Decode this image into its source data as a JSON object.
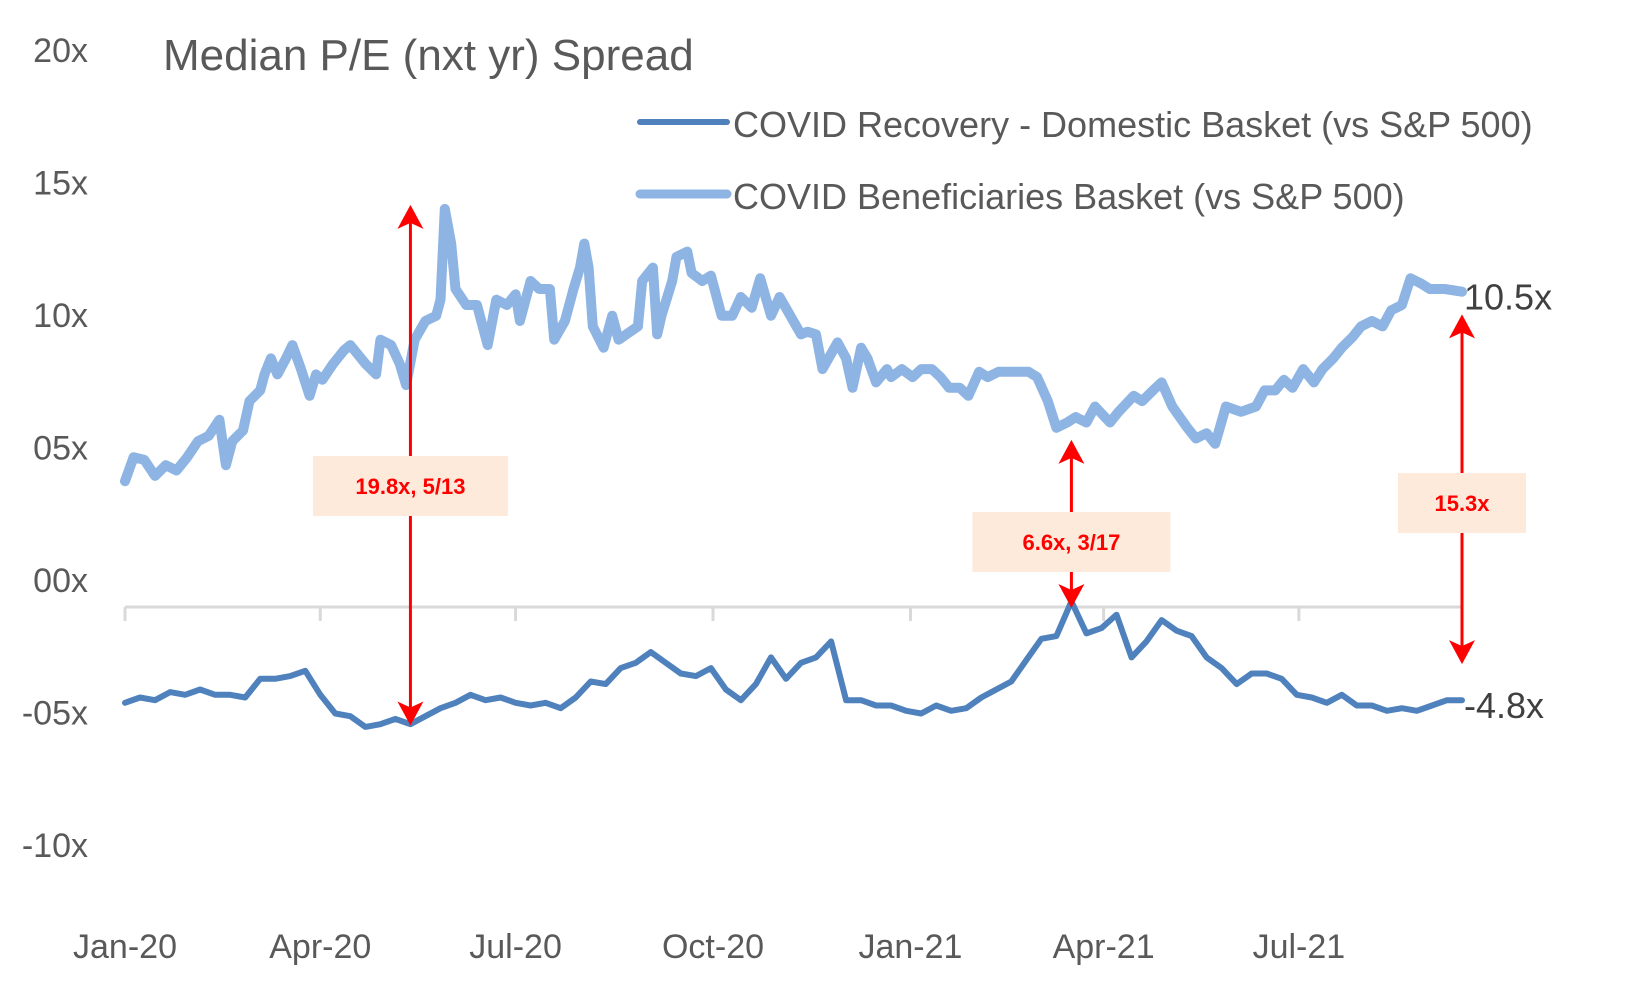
{
  "chart_data": {
    "type": "line",
    "title": "Median P/E (nxt yr) Spread",
    "xlabel": "",
    "ylabel": "",
    "ylim": [
      -10,
      20
    ],
    "yticks": [
      {
        "value": 20,
        "label": "20x"
      },
      {
        "value": 15,
        "label": "15x"
      },
      {
        "value": 10,
        "label": "10x"
      },
      {
        "value": 5,
        "label": "05x"
      },
      {
        "value": 0,
        "label": "00x"
      },
      {
        "value": -5,
        "label": "-05x"
      },
      {
        "value": -10,
        "label": "-10x"
      }
    ],
    "xlim": [
      "2020-01-01",
      "2021-09-15"
    ],
    "xticks": [
      {
        "date": "2020-01-01",
        "label": "Jan-20"
      },
      {
        "date": "2020-04-01",
        "label": "Apr-20"
      },
      {
        "date": "2020-07-01",
        "label": "Jul-20"
      },
      {
        "date": "2020-10-01",
        "label": "Oct-20"
      },
      {
        "date": "2021-01-01",
        "label": "Jan-21"
      },
      {
        "date": "2021-04-01",
        "label": "Apr-21"
      },
      {
        "date": "2021-07-01",
        "label": "Jul-21"
      }
    ],
    "grid": false,
    "legend_position": "top-right",
    "series": [
      {
        "name": "COVID Recovery - Domestic Basket (vs S&P 500)",
        "color": "#4f81bd",
        "end_label": "-4.8x",
        "points": [
          [
            "2020-01-01",
            -4.9
          ],
          [
            "2020-01-08",
            -4.7
          ],
          [
            "2020-01-15",
            -4.8
          ],
          [
            "2020-01-22",
            -4.5
          ],
          [
            "2020-01-29",
            -4.6
          ],
          [
            "2020-02-05",
            -4.4
          ],
          [
            "2020-02-12",
            -4.6
          ],
          [
            "2020-02-19",
            -4.6
          ],
          [
            "2020-02-26",
            -4.7
          ],
          [
            "2020-03-04",
            -4.0
          ],
          [
            "2020-03-11",
            -4.0
          ],
          [
            "2020-03-18",
            -3.9
          ],
          [
            "2020-03-25",
            -3.7
          ],
          [
            "2020-04-01",
            -4.6
          ],
          [
            "2020-04-08",
            -5.3
          ],
          [
            "2020-04-15",
            -5.4
          ],
          [
            "2020-04-22",
            -5.8
          ],
          [
            "2020-04-29",
            -5.7
          ],
          [
            "2020-05-06",
            -5.5
          ],
          [
            "2020-05-13",
            -5.7
          ],
          [
            "2020-05-20",
            -5.4
          ],
          [
            "2020-05-27",
            -5.1
          ],
          [
            "2020-06-03",
            -4.9
          ],
          [
            "2020-06-10",
            -4.6
          ],
          [
            "2020-06-17",
            -4.8
          ],
          [
            "2020-06-24",
            -4.7
          ],
          [
            "2020-07-01",
            -4.9
          ],
          [
            "2020-07-08",
            -5.0
          ],
          [
            "2020-07-15",
            -4.9
          ],
          [
            "2020-07-22",
            -5.1
          ],
          [
            "2020-07-29",
            -4.7
          ],
          [
            "2020-08-05",
            -4.1
          ],
          [
            "2020-08-12",
            -4.2
          ],
          [
            "2020-08-19",
            -3.6
          ],
          [
            "2020-08-26",
            -3.4
          ],
          [
            "2020-09-02",
            -3.0
          ],
          [
            "2020-09-09",
            -3.4
          ],
          [
            "2020-09-16",
            -3.8
          ],
          [
            "2020-09-23",
            -3.9
          ],
          [
            "2020-09-30",
            -3.6
          ],
          [
            "2020-10-07",
            -4.4
          ],
          [
            "2020-10-14",
            -4.8
          ],
          [
            "2020-10-21",
            -4.2
          ],
          [
            "2020-10-28",
            -3.2
          ],
          [
            "2020-11-04",
            -4.0
          ],
          [
            "2020-11-11",
            -3.4
          ],
          [
            "2020-11-18",
            -3.2
          ],
          [
            "2020-11-25",
            -2.6
          ],
          [
            "2020-12-02",
            -4.8
          ],
          [
            "2020-12-09",
            -4.8
          ],
          [
            "2020-12-16",
            -5.0
          ],
          [
            "2020-12-23",
            -5.0
          ],
          [
            "2020-12-30",
            -5.2
          ],
          [
            "2021-01-06",
            -5.3
          ],
          [
            "2021-01-13",
            -5.0
          ],
          [
            "2021-01-20",
            -5.2
          ],
          [
            "2021-01-27",
            -5.1
          ],
          [
            "2021-02-03",
            -4.7
          ],
          [
            "2021-02-10",
            -4.4
          ],
          [
            "2021-02-17",
            -4.1
          ],
          [
            "2021-02-24",
            -3.3
          ],
          [
            "2021-03-03",
            -2.5
          ],
          [
            "2021-03-10",
            -2.4
          ],
          [
            "2021-03-17",
            -1.1
          ],
          [
            "2021-03-24",
            -2.3
          ],
          [
            "2021-03-31",
            -2.1
          ],
          [
            "2021-04-07",
            -1.6
          ],
          [
            "2021-04-14",
            -3.2
          ],
          [
            "2021-04-21",
            -2.6
          ],
          [
            "2021-04-28",
            -1.8
          ],
          [
            "2021-05-05",
            -2.2
          ],
          [
            "2021-05-12",
            -2.4
          ],
          [
            "2021-05-19",
            -3.2
          ],
          [
            "2021-05-26",
            -3.6
          ],
          [
            "2021-06-02",
            -4.2
          ],
          [
            "2021-06-09",
            -3.8
          ],
          [
            "2021-06-16",
            -3.8
          ],
          [
            "2021-06-23",
            -4.0
          ],
          [
            "2021-06-30",
            -4.6
          ],
          [
            "2021-07-07",
            -4.7
          ],
          [
            "2021-07-14",
            -4.9
          ],
          [
            "2021-07-21",
            -4.6
          ],
          [
            "2021-07-28",
            -5.0
          ],
          [
            "2021-08-04",
            -5.0
          ],
          [
            "2021-08-11",
            -5.2
          ],
          [
            "2021-08-18",
            -5.1
          ],
          [
            "2021-08-25",
            -5.2
          ],
          [
            "2021-09-01",
            -5.0
          ],
          [
            "2021-09-08",
            -4.8
          ],
          [
            "2021-09-15",
            -4.8
          ]
        ]
      },
      {
        "name": "COVID Beneficiaries Basket (vs S&P 500)",
        "color": "#8eb4e3",
        "end_label": "10.5x",
        "points": [
          [
            "2020-01-01",
            3.4
          ],
          [
            "2020-01-05",
            4.3
          ],
          [
            "2020-01-10",
            4.2
          ],
          [
            "2020-01-15",
            3.6
          ],
          [
            "2020-01-20",
            4.0
          ],
          [
            "2020-01-25",
            3.8
          ],
          [
            "2020-01-30",
            4.3
          ],
          [
            "2020-02-04",
            4.9
          ],
          [
            "2020-02-09",
            5.1
          ],
          [
            "2020-02-14",
            5.7
          ],
          [
            "2020-02-17",
            4.0
          ],
          [
            "2020-02-20",
            4.9
          ],
          [
            "2020-02-25",
            5.3
          ],
          [
            "2020-02-28",
            6.4
          ],
          [
            "2020-03-04",
            6.8
          ],
          [
            "2020-03-06",
            7.4
          ],
          [
            "2020-03-09",
            8.0
          ],
          [
            "2020-03-12",
            7.4
          ],
          [
            "2020-03-16",
            8.0
          ],
          [
            "2020-03-19",
            8.5
          ],
          [
            "2020-03-23",
            7.6
          ],
          [
            "2020-03-27",
            6.6
          ],
          [
            "2020-03-30",
            7.4
          ],
          [
            "2020-04-02",
            7.2
          ],
          [
            "2020-04-07",
            7.8
          ],
          [
            "2020-04-12",
            8.3
          ],
          [
            "2020-04-15",
            8.5
          ],
          [
            "2020-04-22",
            7.8
          ],
          [
            "2020-04-27",
            7.4
          ],
          [
            "2020-04-29",
            8.7
          ],
          [
            "2020-05-04",
            8.5
          ],
          [
            "2020-05-08",
            7.8
          ],
          [
            "2020-05-11",
            7.0
          ],
          [
            "2020-05-15",
            8.7
          ],
          [
            "2020-05-20",
            9.4
          ],
          [
            "2020-05-25",
            9.6
          ],
          [
            "2020-05-27",
            10.2
          ],
          [
            "2020-05-29",
            13.6
          ],
          [
            "2020-06-01",
            12.3
          ],
          [
            "2020-06-03",
            10.6
          ],
          [
            "2020-06-08",
            10.0
          ],
          [
            "2020-06-13",
            10.0
          ],
          [
            "2020-06-18",
            8.5
          ],
          [
            "2020-06-22",
            10.2
          ],
          [
            "2020-06-27",
            10.0
          ],
          [
            "2020-07-01",
            10.4
          ],
          [
            "2020-07-03",
            9.4
          ],
          [
            "2020-07-08",
            10.9
          ],
          [
            "2020-07-12",
            10.6
          ],
          [
            "2020-07-17",
            10.6
          ],
          [
            "2020-07-19",
            8.7
          ],
          [
            "2020-07-24",
            9.4
          ],
          [
            "2020-07-28",
            10.6
          ],
          [
            "2020-07-31",
            11.4
          ],
          [
            "2020-08-02",
            12.3
          ],
          [
            "2020-08-04",
            11.4
          ],
          [
            "2020-08-06",
            9.2
          ],
          [
            "2020-08-11",
            8.4
          ],
          [
            "2020-08-15",
            9.6
          ],
          [
            "2020-08-18",
            8.7
          ],
          [
            "2020-08-27",
            9.2
          ],
          [
            "2020-08-29",
            10.9
          ],
          [
            "2020-09-03",
            11.4
          ],
          [
            "2020-09-05",
            8.9
          ],
          [
            "2020-09-07",
            9.6
          ],
          [
            "2020-09-12",
            10.9
          ],
          [
            "2020-09-14",
            11.8
          ],
          [
            "2020-09-19",
            12.0
          ],
          [
            "2020-09-21",
            11.2
          ],
          [
            "2020-09-26",
            10.9
          ],
          [
            "2020-09-30",
            11.1
          ],
          [
            "2020-10-05",
            9.6
          ],
          [
            "2020-10-10",
            9.6
          ],
          [
            "2020-10-14",
            10.3
          ],
          [
            "2020-10-19",
            9.9
          ],
          [
            "2020-10-23",
            11.0
          ],
          [
            "2020-10-28",
            9.6
          ],
          [
            "2020-11-01",
            10.3
          ],
          [
            "2020-11-06",
            9.6
          ],
          [
            "2020-11-11",
            8.9
          ],
          [
            "2020-11-14",
            9.0
          ],
          [
            "2020-11-18",
            8.9
          ],
          [
            "2020-11-21",
            7.6
          ],
          [
            "2020-11-28",
            8.6
          ],
          [
            "2020-12-02",
            8.0
          ],
          [
            "2020-12-05",
            6.9
          ],
          [
            "2020-12-09",
            8.4
          ],
          [
            "2020-12-12",
            8.0
          ],
          [
            "2020-12-16",
            7.1
          ],
          [
            "2020-12-21",
            7.6
          ],
          [
            "2020-12-23",
            7.3
          ],
          [
            "2020-12-28",
            7.6
          ],
          [
            "2021-01-02",
            7.3
          ],
          [
            "2021-01-06",
            7.6
          ],
          [
            "2021-01-11",
            7.6
          ],
          [
            "2021-01-15",
            7.3
          ],
          [
            "2021-01-19",
            6.9
          ],
          [
            "2021-01-24",
            6.9
          ],
          [
            "2021-01-28",
            6.6
          ],
          [
            "2021-02-02",
            7.5
          ],
          [
            "2021-02-06",
            7.3
          ],
          [
            "2021-02-11",
            7.5
          ],
          [
            "2021-02-18",
            7.5
          ],
          [
            "2021-02-25",
            7.5
          ],
          [
            "2021-03-01",
            7.3
          ],
          [
            "2021-03-06",
            6.4
          ],
          [
            "2021-03-10",
            5.4
          ],
          [
            "2021-03-15",
            5.6
          ],
          [
            "2021-03-19",
            5.8
          ],
          [
            "2021-03-24",
            5.6
          ],
          [
            "2021-03-28",
            6.2
          ],
          [
            "2021-04-04",
            5.6
          ],
          [
            "2021-04-08",
            6.0
          ],
          [
            "2021-04-15",
            6.6
          ],
          [
            "2021-04-19",
            6.4
          ],
          [
            "2021-04-24",
            6.8
          ],
          [
            "2021-04-28",
            7.1
          ],
          [
            "2021-05-03",
            6.2
          ],
          [
            "2021-05-10",
            5.4
          ],
          [
            "2021-05-14",
            5.0
          ],
          [
            "2021-05-19",
            5.2
          ],
          [
            "2021-05-23",
            4.8
          ],
          [
            "2021-05-28",
            6.2
          ],
          [
            "2021-06-04",
            6.0
          ],
          [
            "2021-06-11",
            6.2
          ],
          [
            "2021-06-15",
            6.8
          ],
          [
            "2021-06-20",
            6.8
          ],
          [
            "2021-06-24",
            7.2
          ],
          [
            "2021-06-28",
            6.9
          ],
          [
            "2021-07-03",
            7.6
          ],
          [
            "2021-07-08",
            7.1
          ],
          [
            "2021-07-12",
            7.6
          ],
          [
            "2021-07-17",
            8.0
          ],
          [
            "2021-07-21",
            8.4
          ],
          [
            "2021-07-26",
            8.8
          ],
          [
            "2021-07-30",
            9.2
          ],
          [
            "2021-08-04",
            9.4
          ],
          [
            "2021-08-09",
            9.2
          ],
          [
            "2021-08-13",
            9.8
          ],
          [
            "2021-08-18",
            10.0
          ],
          [
            "2021-08-22",
            11.0
          ],
          [
            "2021-08-27",
            10.8
          ],
          [
            "2021-08-31",
            10.6
          ],
          [
            "2021-09-07",
            10.6
          ],
          [
            "2021-09-15",
            10.5
          ]
        ]
      }
    ],
    "annotations": [
      {
        "label": "19.8x, 5/13",
        "date": "2020-05-13",
        "from": 13.9,
        "to": -5.9
      },
      {
        "label": "6.6x, 3/17",
        "date": "2021-03-17",
        "from": 5.1,
        "to": -1.5
      },
      {
        "label": "15.3x",
        "date": "2021-09-15",
        "from": 9.8,
        "to": -3.6
      }
    ]
  }
}
